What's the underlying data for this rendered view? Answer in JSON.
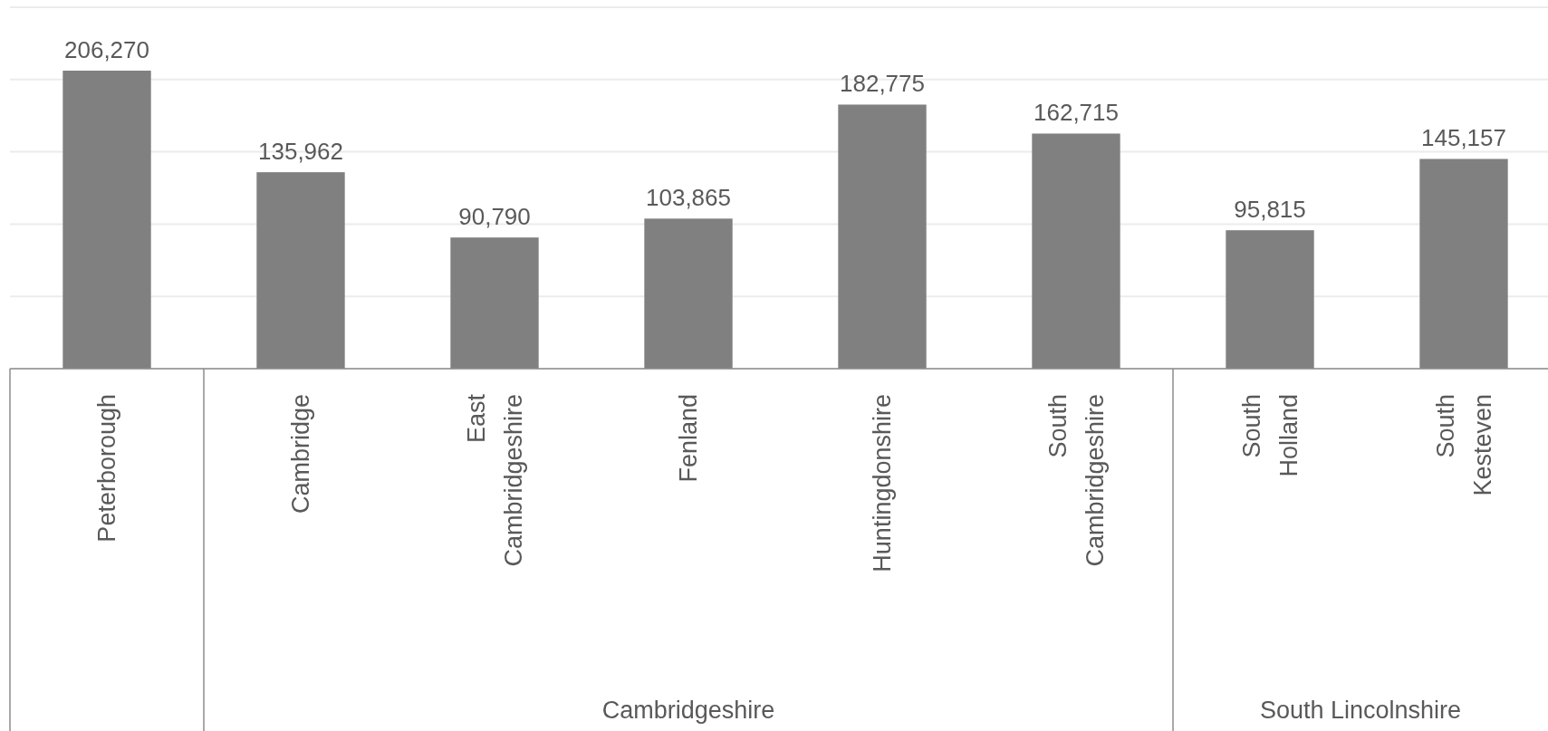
{
  "chart_data": {
    "type": "bar",
    "categories": [
      "Peterborough",
      "Cambridge",
      "East Cambridgeshire",
      "Fenland",
      "Huntingdonshire",
      "South Cambridgeshire",
      "South Holland",
      "South Kesteven"
    ],
    "values": [
      206270,
      135962,
      90790,
      103865,
      182775,
      162715,
      95815,
      145157
    ],
    "value_labels": [
      "206,270",
      "135,962",
      "90,790",
      "103,865",
      "182,775",
      "162,715",
      "95,815",
      "145,157"
    ],
    "color": "#808080",
    "tick_labels": "x",
    "grid": "y",
    "annotations": [
      "Cambridgeshire",
      "South Lincolnshire"
    ]
  }
}
